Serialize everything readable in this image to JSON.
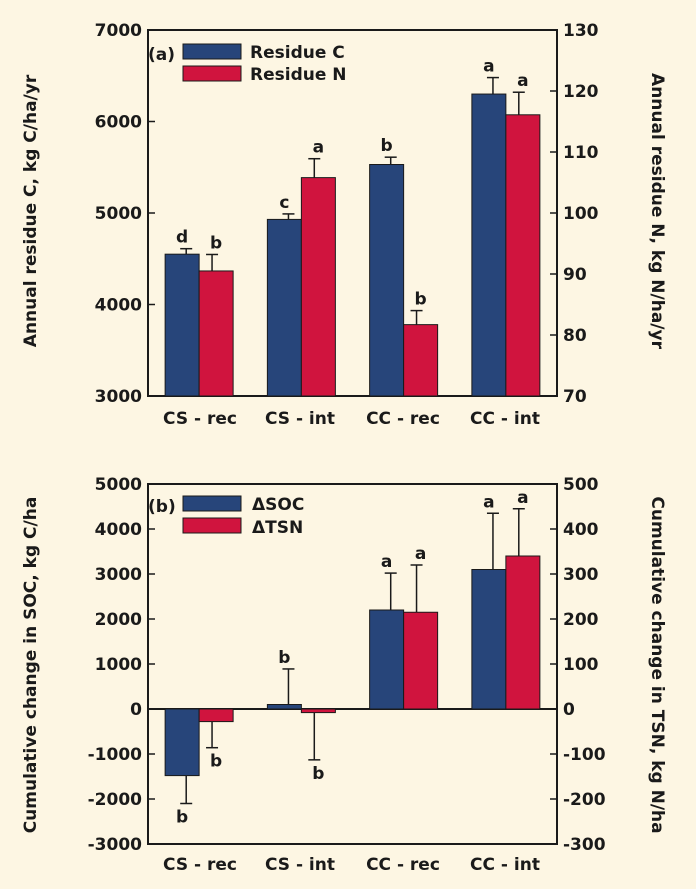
{
  "background": "#fdf6e3",
  "colors": {
    "series1": "#27457a",
    "series2": "#d0143e",
    "axis": "#1a1a1a"
  },
  "chart_data": [
    {
      "type": "bar",
      "panel_label": "(a)",
      "categories": [
        "CS - rec",
        "CS - int",
        "CC - rec",
        "CC - int"
      ],
      "series": [
        {
          "name": "Residue C",
          "axis": "left",
          "values": [
            4550,
            4930,
            5530,
            6300
          ],
          "errors": [
            60,
            60,
            80,
            180
          ],
          "letters": [
            "d",
            "c",
            "b",
            "a"
          ]
        },
        {
          "name": "Residue N",
          "axis": "right",
          "values": [
            90.5,
            105.8,
            81.7,
            116.1
          ],
          "errors": [
            2.7,
            3.1,
            2.3,
            3.7
          ],
          "letters": [
            "b",
            "a",
            "b",
            "a"
          ]
        }
      ],
      "ylabel_left": "Annual residue C, kg C/ha/yr",
      "ylabel_right": "Annual residue N, kg N/ha/yr",
      "ylim_left": [
        3000,
        7000
      ],
      "ylim_right": [
        70,
        130
      ],
      "yticks_left": [
        "7000",
        "6000",
        "5000",
        "4000",
        "3000"
      ],
      "yticks_right": [
        "130",
        "120",
        "110",
        "100",
        "90",
        "80",
        "70"
      ],
      "legend_position": "top-left",
      "grid": false
    },
    {
      "type": "bar",
      "panel_label": "(b)",
      "categories": [
        "CS - rec",
        "CS - int",
        "CC - rec",
        "CC - int"
      ],
      "series": [
        {
          "name": "ΔSOC",
          "axis": "left",
          "values": [
            -1480,
            100,
            2200,
            3100
          ],
          "errors": [
            620,
            790,
            820,
            1250
          ],
          "letters": [
            "b",
            "b",
            "a",
            "a"
          ]
        },
        {
          "name": "ΔTSN",
          "axis": "right",
          "values": [
            -28,
            -8,
            215,
            340
          ],
          "errors": [
            58,
            105,
            105,
            105
          ],
          "letters": [
            "b",
            "b",
            "a",
            "a"
          ]
        }
      ],
      "ylabel_left": "Cumulative change in SOC, kg C/ha",
      "ylabel_right": "Cumulative change in TSN, kg N/ha",
      "ylim_left": [
        -3000,
        5000
      ],
      "ylim_right": [
        -300,
        500
      ],
      "yticks_left": [
        "5000",
        "4000",
        "3000",
        "2000",
        "1000",
        "0",
        "-1000",
        "-2000",
        "-3000"
      ],
      "yticks_right": [
        "500",
        "400",
        "300",
        "200",
        "100",
        "0",
        "-100",
        "-200",
        "-300"
      ],
      "legend_position": "top-left",
      "grid": false
    }
  ]
}
